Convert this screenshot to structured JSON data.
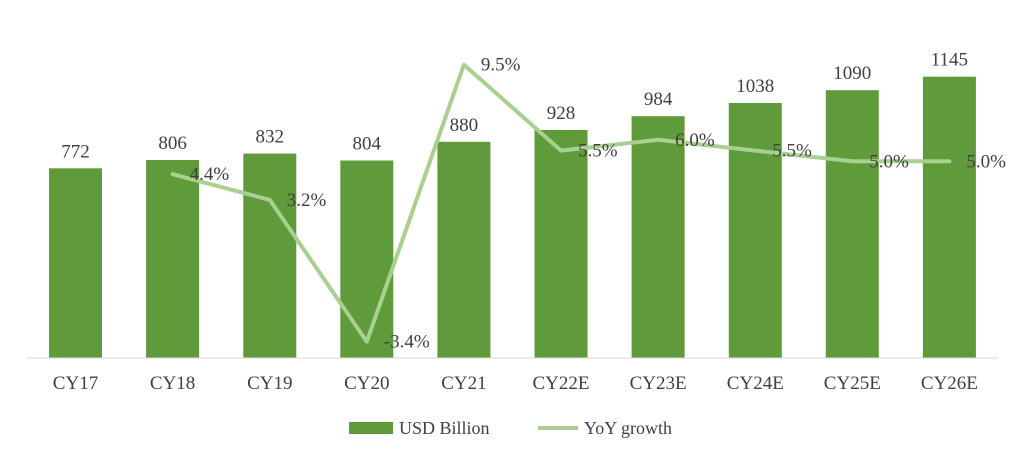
{
  "chart_data": {
    "type": "bar",
    "categories": [
      "CY17",
      "CY18",
      "CY19",
      "CY20",
      "CY21",
      "CY22E",
      "CY23E",
      "CY24E",
      "CY25E",
      "CY26E"
    ],
    "series": [
      {
        "name": "USD Billion",
        "type": "bar",
        "values": [
          772,
          806,
          832,
          804,
          880,
          928,
          984,
          1038,
          1090,
          1145
        ],
        "labels": [
          "772",
          "806",
          "832",
          "804",
          "880",
          "928",
          "984",
          "1038",
          "1090",
          "1145"
        ],
        "color": "#5f9a3b"
      },
      {
        "name": "YoY growth",
        "type": "line",
        "values": [
          null,
          4.4,
          3.2,
          -3.4,
          9.5,
          5.5,
          6.0,
          5.5,
          5.0,
          5.0
        ],
        "labels": [
          "",
          "4.4%",
          "3.2%",
          "-3.4%",
          "9.5%",
          "5.5%",
          "6.0%",
          "5.5%",
          "5.0%",
          "5.0%"
        ],
        "color": "#a9d08e"
      }
    ],
    "grid": false,
    "legend_position": "bottom"
  }
}
